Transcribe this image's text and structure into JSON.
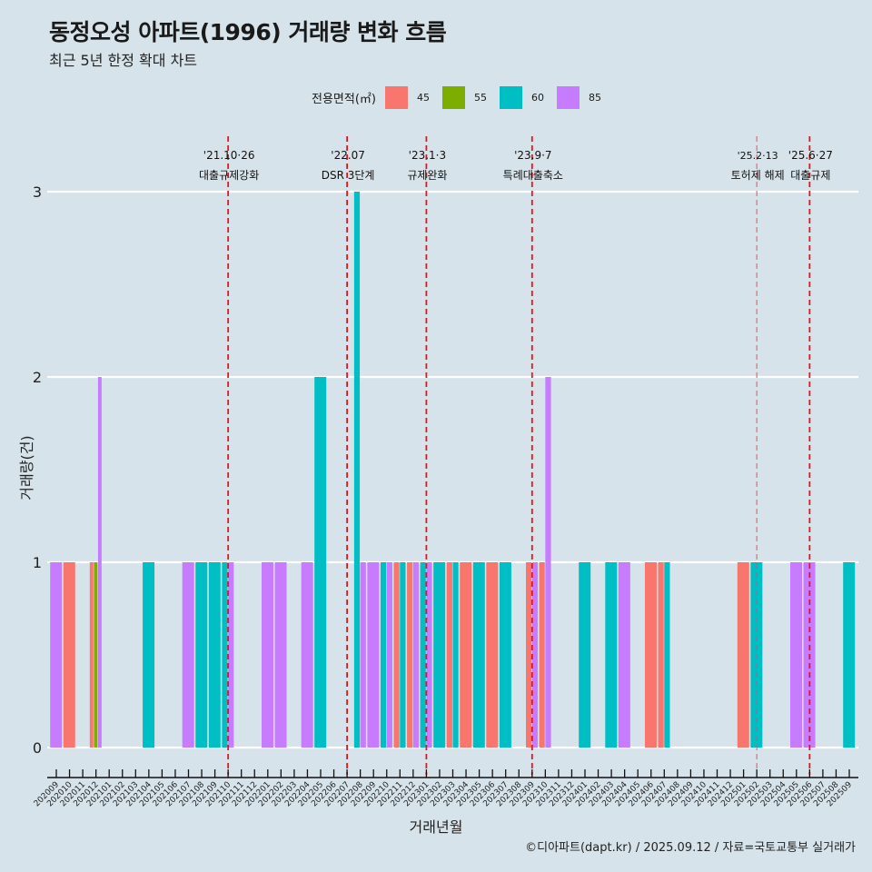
{
  "header": {
    "title": "동정오성 아파트(1996) 거래량 변화 흐름",
    "subtitle": "최근 5년 한정 확대 차트"
  },
  "legend": {
    "title": "전용면적(㎡)",
    "items": [
      {
        "label": "45",
        "color": "#F8766D"
      },
      {
        "label": "55",
        "color": "#7CAE00"
      },
      {
        "label": "60",
        "color": "#00BFC4"
      },
      {
        "label": "85",
        "color": "#C77CFF"
      }
    ]
  },
  "caption": "©디아파트(dapt.kr) / 2025.09.12 / 자료=국토교통부 실거래가",
  "chart_data": {
    "type": "bar",
    "title": "동정오성 아파트(1996) 거래량 변화 흐름",
    "subtitle": "최근 5년 한정 확대 차트",
    "xlabel": "거래년월",
    "ylabel": "거래량(건)",
    "ylim": [
      0,
      3
    ],
    "yticks": [
      "0",
      "1",
      "2",
      "3"
    ],
    "grid": "horizontal",
    "legend_position": "top",
    "position": "dodge",
    "categories": [
      "202009",
      "202010",
      "202011",
      "202012",
      "202101",
      "202102",
      "202103",
      "202104",
      "202105",
      "202106",
      "202107",
      "202108",
      "202109",
      "202110",
      "202111",
      "202112",
      "202201",
      "202202",
      "202203",
      "202204",
      "202205",
      "202206",
      "202207",
      "202208",
      "202209",
      "202210",
      "202211",
      "202212",
      "202301",
      "202302",
      "202303",
      "202304",
      "202305",
      "202306",
      "202307",
      "202308",
      "202309",
      "202310",
      "202311",
      "202312",
      "202401",
      "202402",
      "202403",
      "202404",
      "202405",
      "202406",
      "202407",
      "202408",
      "202409",
      "202410",
      "202411",
      "202412",
      "202501",
      "202502",
      "202503",
      "202504",
      "202505",
      "202506",
      "202507",
      "202508",
      "202509"
    ],
    "series": [
      {
        "name": "45",
        "color": "#F8766D",
        "values": {
          "202010": 1,
          "202012": 1,
          "202211": 1,
          "202212": 1,
          "202303": 1,
          "202304": 1,
          "202306": 1,
          "202309": 1,
          "202310": 1,
          "202406": 1,
          "202407": 1,
          "202501": 1
        }
      },
      {
        "name": "55",
        "color": "#7CAE00",
        "values": {
          "202012": 1
        }
      },
      {
        "name": "60",
        "color": "#00BFC4",
        "values": {
          "202104": 1,
          "202108": 1,
          "202109": 1,
          "202110": 1,
          "202205": 2,
          "202208": 3,
          "202210": 1,
          "202211": 1,
          "202301": 1,
          "202302": 1,
          "202303": 1,
          "202305": 1,
          "202307": 1,
          "202401": 1,
          "202403": 1,
          "202407": 1,
          "202502": 1,
          "202509": 1
        }
      },
      {
        "name": "85",
        "color": "#C77CFF",
        "values": {
          "202009": 1,
          "202012": 2,
          "202107": 1,
          "202110": 1,
          "202201": 1,
          "202202": 1,
          "202204": 1,
          "202208": 1,
          "202209": 1,
          "202210": 1,
          "202212": 1,
          "202301": 1,
          "202309": 1,
          "202310": 2,
          "202404": 1,
          "202505": 1,
          "202506": 1
        }
      }
    ],
    "annotations": [
      {
        "month": "202110",
        "date": "'21.10·26",
        "label": "대출규제강화",
        "style": "major"
      },
      {
        "month": "202207",
        "date": "'22.07",
        "label": "DSR 3단계",
        "style": "major"
      },
      {
        "month": "202301",
        "date": "'23.1·3",
        "label": "규제완화",
        "style": "major"
      },
      {
        "month": "202309",
        "date": "'23.9·7",
        "label": "특례대출축소",
        "style": "major"
      },
      {
        "month": "202502",
        "date": "'25.2·13",
        "label": "토허제 해제",
        "style": "minor"
      },
      {
        "month": "202506",
        "date": "'25.6·27",
        "label": "대출규제",
        "style": "major"
      }
    ]
  }
}
